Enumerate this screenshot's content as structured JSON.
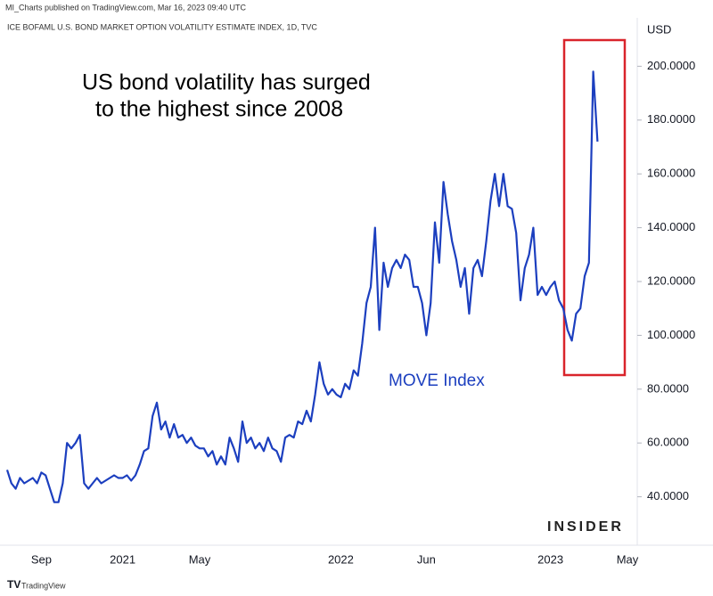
{
  "chart_data": {
    "type": "line",
    "header": "MI_Charts published on TradingView.com, Mar 16, 2023 09:40 UTC",
    "subtitle": "ICE BOFAML U.S. BOND MARKET OPTION VOLATILITY ESTIMATE INDEX, 1D, TVC",
    "y_label": "USD",
    "annotations": [
      "US bond volatility has surged",
      "to the highest since 2008"
    ],
    "brand": "INSIDER",
    "footer": "TradingView",
    "categories": [
      null,
      null,
      null,
      null,
      null,
      null,
      null,
      null,
      "Sep",
      null,
      null,
      null,
      null,
      null,
      null,
      null,
      null,
      null,
      null,
      null,
      null,
      null,
      null,
      null,
      null,
      null,
      null,
      "2021",
      null,
      null,
      null,
      null,
      null,
      null,
      null,
      null,
      null,
      null,
      null,
      null,
      null,
      null,
      null,
      null,
      null,
      "May",
      null,
      null,
      null,
      null,
      null,
      null,
      null,
      null,
      null,
      null,
      null,
      null,
      null,
      null,
      null,
      null,
      null,
      null,
      null,
      null,
      null,
      null,
      null,
      null,
      null,
      null,
      null,
      null,
      null,
      null,
      null,
      null,
      "2022",
      null,
      null,
      null,
      null,
      null,
      null,
      null,
      null,
      null,
      null,
      null,
      null,
      null,
      null,
      null,
      null,
      null,
      null,
      null,
      "Jun",
      null,
      null,
      null,
      null,
      null,
      null,
      null,
      null,
      null,
      null,
      null,
      null,
      null,
      null,
      null,
      null,
      null,
      null,
      null,
      null,
      null,
      null,
      null,
      null,
      null,
      null,
      null,
      null,
      "2023",
      null,
      null,
      null,
      null,
      null,
      null,
      null,
      null,
      null,
      null,
      null,
      null,
      null,
      null,
      null,
      null,
      null,
      "May"
    ],
    "series": [
      {
        "name": "MOVE Index",
        "color": "#1c3fbf",
        "values": [
          50,
          45,
          43,
          47,
          45,
          46,
          47,
          45,
          49,
          48,
          43,
          38,
          38,
          45,
          60,
          58,
          60,
          63,
          45,
          43,
          45,
          47,
          45,
          46,
          47,
          48,
          47,
          47,
          48,
          46,
          48,
          52,
          57,
          58,
          70,
          75,
          65,
          68,
          62,
          67,
          62,
          63,
          60,
          62,
          59,
          58,
          58,
          55,
          57,
          52,
          55,
          52,
          62,
          58,
          53,
          68,
          60,
          62,
          58,
          60,
          57,
          62,
          58,
          57,
          53,
          62,
          63,
          62,
          68,
          67,
          72,
          68,
          78,
          90,
          82,
          78,
          80,
          78,
          77,
          82,
          80,
          87,
          85,
          97,
          112,
          118,
          140,
          102,
          127,
          118,
          125,
          128,
          125,
          130,
          128,
          118,
          118,
          112,
          100,
          112,
          142,
          127,
          157,
          145,
          135,
          128,
          118,
          125,
          108,
          125,
          128,
          122,
          135,
          150,
          160,
          148,
          160,
          148,
          147,
          138,
          113,
          125,
          130,
          140,
          115,
          118,
          115,
          118,
          120,
          113,
          110,
          102,
          98,
          108,
          110,
          122,
          127,
          198,
          172,
          null,
          null,
          null,
          null,
          null,
          null,
          null
        ]
      }
    ],
    "ylim": [
      22,
      218
    ],
    "yticks": [
      {
        "value": 40,
        "label": "40.0000"
      },
      {
        "value": 60,
        "label": "60.0000"
      },
      {
        "value": 80,
        "label": "80.0000"
      },
      {
        "value": 100,
        "label": "100.0000"
      },
      {
        "value": 120,
        "label": "120.0000"
      },
      {
        "value": 140,
        "label": "140.0000"
      },
      {
        "value": 160,
        "label": "160.0000"
      },
      {
        "value": 180,
        "label": "180.0000"
      },
      {
        "value": 200,
        "label": "200.0000"
      }
    ],
    "grid": false
  }
}
